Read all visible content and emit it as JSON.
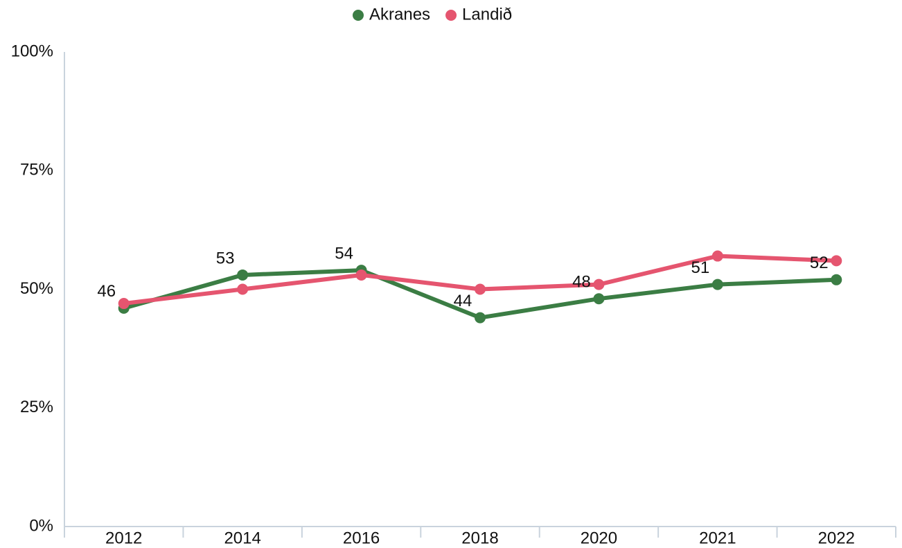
{
  "chart_data": {
    "type": "line",
    "categories": [
      "2012",
      "2014",
      "2016",
      "2018",
      "2020",
      "2021",
      "2022"
    ],
    "series": [
      {
        "name": "Akranes",
        "color": "#3b7d44",
        "values": [
          46,
          53,
          54,
          44,
          48,
          51,
          52
        ]
      },
      {
        "name": "Landið",
        "color": "#e5556f",
        "values": [
          47,
          50,
          53,
          50,
          51,
          57,
          56
        ]
      }
    ],
    "data_labels_series": 0,
    "ylim": [
      0,
      100
    ],
    "yticks": [
      {
        "value": 0,
        "label": "0%"
      },
      {
        "value": 25,
        "label": "25%"
      },
      {
        "value": 50,
        "label": "50%"
      },
      {
        "value": 75,
        "label": "75%"
      },
      {
        "value": 100,
        "label": "100%"
      }
    ],
    "grid": false,
    "legend": "top"
  }
}
